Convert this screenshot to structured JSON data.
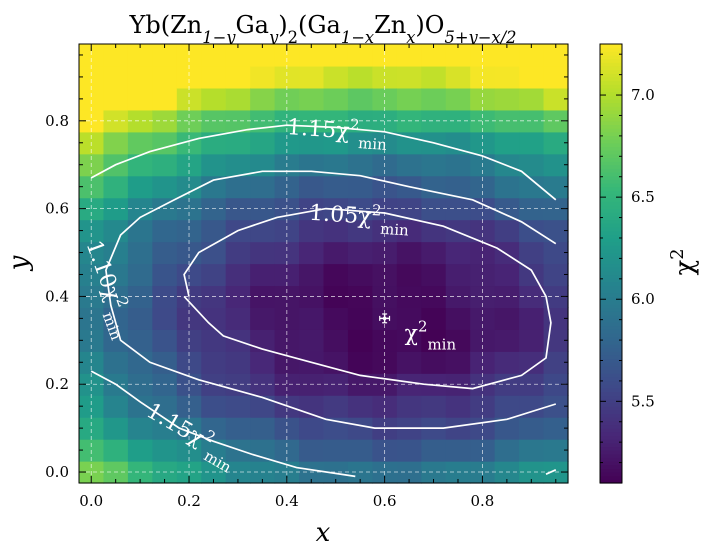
{
  "chart_data": {
    "type": "heatmap",
    "title": "Yb(Zn1−yGay)2(Ga1−xZnx)O5+y−x/2",
    "title_parts": [
      {
        "t": "Yb(Zn"
      },
      {
        "t": "1−y",
        "sub": true,
        "italic": true
      },
      {
        "t": "Ga"
      },
      {
        "t": "y",
        "sub": true,
        "italic": true
      },
      {
        "t": ")"
      },
      {
        "t": "2",
        "sub": true
      },
      {
        "t": "(Ga"
      },
      {
        "t": "1−x",
        "sub": true,
        "italic": true
      },
      {
        "t": "Zn"
      },
      {
        "t": "x",
        "sub": true,
        "italic": true
      },
      {
        "t": ")O"
      },
      {
        "t": "5+y−x/2",
        "sub": true,
        "italic": true
      }
    ],
    "xlabel": "x",
    "ylabel": "y",
    "xlim": [
      -0.025,
      0.975
    ],
    "ylim": [
      -0.025,
      0.975
    ],
    "x_ticks": [
      0.0,
      0.2,
      0.4,
      0.6,
      0.8
    ],
    "y_ticks": [
      0.0,
      0.2,
      0.4,
      0.6,
      0.8
    ],
    "x_tick_labels": [
      "0.0",
      "0.2",
      "0.4",
      "0.6",
      "0.8"
    ],
    "y_tick_labels": [
      "0.0",
      "0.2",
      "0.4",
      "0.6",
      "0.8"
    ],
    "grid": true,
    "grid_values": {
      "x_start": 0.0,
      "x_step": 0.05,
      "nx": 20,
      "y_start": 0.0,
      "y_step": 0.05,
      "ny": 20,
      "model": "chi2 ≈ 5.12 + 2.4·(x−0.6)^2 + 6.5·(y−0.35)^2 (smooth approximation of the surface)"
    },
    "colorbar": {
      "label": "χ2",
      "label_parts": [
        {
          "t": "χ"
        },
        {
          "t": "2",
          "sup": true
        }
      ],
      "vmin": 5.1,
      "vmax": 7.25,
      "ticks": [
        5.5,
        6.0,
        6.5,
        7.0
      ],
      "tick_labels": [
        "5.5",
        "6.0",
        "6.5",
        "7.0"
      ],
      "colormap": "viridis"
    },
    "minimum": {
      "x": 0.6,
      "y": 0.35,
      "x_err": 0.01,
      "y_err": 0.01,
      "label": "χ2min",
      "label_parts": [
        {
          "t": "χ"
        },
        {
          "t": "2",
          "sup": true
        },
        {
          "t": "min",
          "sub": true
        }
      ]
    },
    "contours": [
      {
        "level": "1.05χ2min",
        "label_parts": [
          {
            "t": "1.05χ"
          },
          {
            "t": "2",
            "sup": true
          },
          {
            "t": "min",
            "sub": true
          }
        ],
        "points": [
          [
            0.2,
            0.4
          ],
          [
            0.19,
            0.45
          ],
          [
            0.22,
            0.5
          ],
          [
            0.3,
            0.55
          ],
          [
            0.38,
            0.58
          ],
          [
            0.48,
            0.6
          ],
          [
            0.6,
            0.59
          ],
          [
            0.72,
            0.56
          ],
          [
            0.83,
            0.51
          ],
          [
            0.9,
            0.46
          ],
          [
            0.93,
            0.4
          ],
          [
            0.94,
            0.34
          ],
          [
            0.93,
            0.26
          ],
          [
            0.88,
            0.22
          ],
          [
            0.78,
            0.19
          ],
          [
            0.68,
            0.2
          ],
          [
            0.55,
            0.22
          ],
          [
            0.45,
            0.25
          ],
          [
            0.35,
            0.28
          ],
          [
            0.27,
            0.31
          ],
          [
            0.24,
            0.34
          ],
          [
            0.19,
            0.4
          ]
        ]
      },
      {
        "level": "1.10χ2min",
        "label_parts": [
          {
            "t": "1.10χ"
          },
          {
            "t": "2",
            "sup": true
          },
          {
            "t": "min",
            "sub": true
          }
        ],
        "points": [
          [
            0.95,
            0.52
          ],
          [
            0.88,
            0.57
          ],
          [
            0.78,
            0.62
          ],
          [
            0.65,
            0.65
          ],
          [
            0.55,
            0.675
          ],
          [
            0.45,
            0.685
          ],
          [
            0.35,
            0.685
          ],
          [
            0.25,
            0.665
          ],
          [
            0.17,
            0.62
          ],
          [
            0.1,
            0.58
          ],
          [
            0.06,
            0.54
          ],
          [
            0.03,
            0.46
          ],
          [
            0.04,
            0.38
          ],
          [
            0.06,
            0.3
          ],
          [
            0.12,
            0.25
          ],
          [
            0.22,
            0.21
          ],
          [
            0.35,
            0.17
          ],
          [
            0.48,
            0.12
          ],
          [
            0.58,
            0.1
          ],
          [
            0.72,
            0.1
          ],
          [
            0.85,
            0.12
          ],
          [
            0.95,
            0.155
          ]
        ],
        "open": true
      },
      {
        "level": "1.15χ2min",
        "label_parts": [
          {
            "t": "1.15χ"
          },
          {
            "t": "2",
            "sup": true
          },
          {
            "t": "min",
            "sub": true
          }
        ],
        "points": [
          [
            0.0,
            0.67
          ],
          [
            0.05,
            0.7
          ],
          [
            0.12,
            0.73
          ],
          [
            0.22,
            0.76
          ],
          [
            0.32,
            0.78
          ],
          [
            0.4,
            0.79
          ],
          [
            0.5,
            0.785
          ],
          [
            0.6,
            0.775
          ],
          [
            0.7,
            0.75
          ],
          [
            0.8,
            0.72
          ],
          [
            0.88,
            0.685
          ],
          [
            0.95,
            0.62
          ]
        ],
        "open": true
      },
      {
        "level": "1.15χ2min",
        "label_parts": [
          {
            "t": "1.15χ"
          },
          {
            "t": "2",
            "sup": true
          },
          {
            "t": "min",
            "sub": true
          }
        ],
        "points": [
          [
            0.0,
            0.23
          ],
          [
            0.05,
            0.2
          ],
          [
            0.1,
            0.16
          ],
          [
            0.18,
            0.1
          ],
          [
            0.25,
            0.07
          ],
          [
            0.33,
            0.04
          ],
          [
            0.42,
            0.01
          ],
          [
            0.54,
            -0.01
          ]
        ],
        "open": true
      },
      {
        "level": "",
        "points": [
          [
            0.93,
            -0.005
          ],
          [
            0.95,
            0.005
          ]
        ],
        "open": true
      }
    ],
    "contour_labels": [
      {
        "text_parts": [
          {
            "t": "1.15χ"
          },
          {
            "t": "2",
            "sup": true
          },
          {
            "t": "min",
            "sub": true
          }
        ],
        "x": 0.4,
        "y": 0.77,
        "angle": 4
      },
      {
        "text_parts": [
          {
            "t": "1.05χ"
          },
          {
            "t": "2",
            "sup": true
          },
          {
            "t": "min",
            "sub": true
          }
        ],
        "x": 0.445,
        "y": 0.575,
        "angle": 4
      },
      {
        "text_parts": [
          {
            "t": "1.10χ"
          },
          {
            "t": "2",
            "sup": true
          },
          {
            "t": "min",
            "sub": true
          }
        ],
        "x": -0.01,
        "y": 0.52,
        "angle": 70
      },
      {
        "text_parts": [
          {
            "t": "1.15χ"
          },
          {
            "t": "2",
            "sup": true
          },
          {
            "t": "min",
            "sub": true
          }
        ],
        "x": 0.11,
        "y": 0.13,
        "angle": 30
      }
    ]
  }
}
